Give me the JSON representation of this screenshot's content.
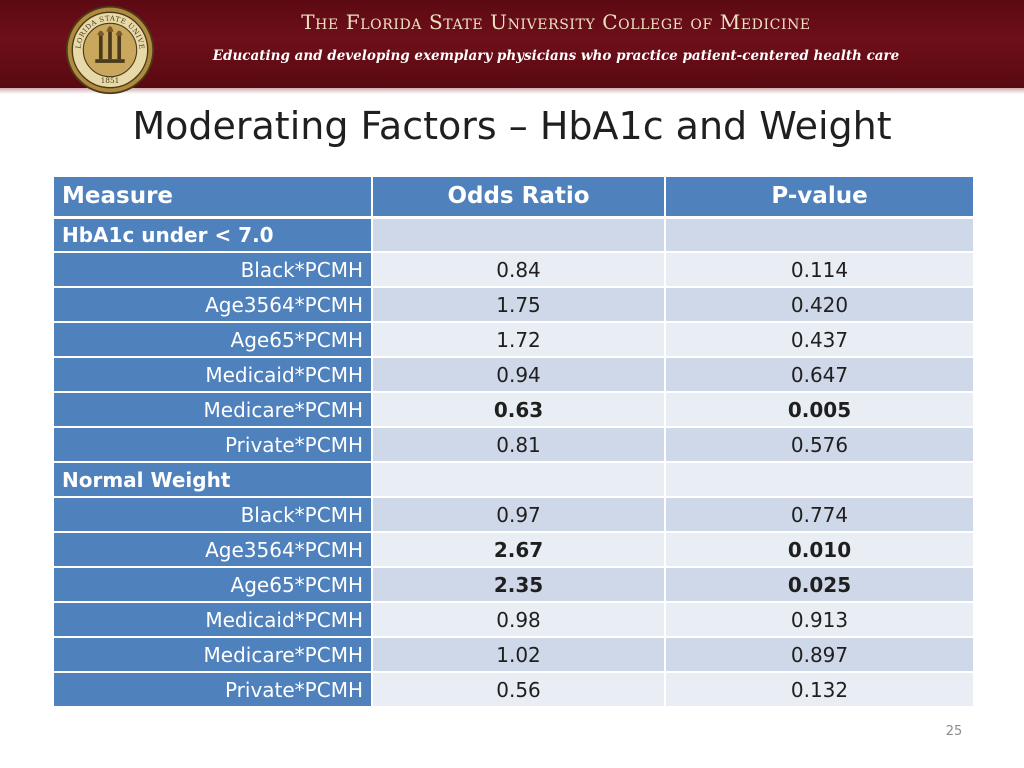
{
  "header": {
    "institution": "The Florida State University College of Medicine",
    "tagline": "Educating and developing exemplary physicians who practice patient-centered health care",
    "seal": {
      "text_top": "THE FLORIDA STATE UNIVERSITY",
      "year": "1851",
      "colors": {
        "gold": "#b08a3e",
        "dark": "#4a3a1a",
        "light": "#e8d9a8"
      }
    }
  },
  "title": "Moderating Factors – HbA1c and Weight",
  "table": {
    "columns": [
      "Measure",
      "Odds Ratio",
      "P-value"
    ],
    "rows": [
      {
        "type": "group",
        "label": "HbA1c under < 7.0",
        "odds": "",
        "p": "",
        "bold": false
      },
      {
        "type": "row",
        "label": "Black*PCMH",
        "odds": "0.84",
        "p": "0.114",
        "bold": false
      },
      {
        "type": "row",
        "label": "Age3564*PCMH",
        "odds": "1.75",
        "p": "0.420",
        "bold": false
      },
      {
        "type": "row",
        "label": "Age65*PCMH",
        "odds": "1.72",
        "p": "0.437",
        "bold": false
      },
      {
        "type": "row",
        "label": "Medicaid*PCMH",
        "odds": "0.94",
        "p": "0.647",
        "bold": false
      },
      {
        "type": "row",
        "label": "Medicare*PCMH",
        "odds": "0.63",
        "p": "0.005",
        "bold": true
      },
      {
        "type": "row",
        "label": "Private*PCMH",
        "odds": "0.81",
        "p": "0.576",
        "bold": false
      },
      {
        "type": "group",
        "label": "Normal Weight",
        "odds": "",
        "p": "",
        "bold": false
      },
      {
        "type": "row",
        "label": "Black*PCMH",
        "odds": "0.97",
        "p": "0.774",
        "bold": false
      },
      {
        "type": "row",
        "label": "Age3564*PCMH",
        "odds": "2.67",
        "p": "0.010",
        "bold": true
      },
      {
        "type": "row",
        "label": "Age65*PCMH",
        "odds": "2.35",
        "p": "0.025",
        "bold": true
      },
      {
        "type": "row",
        "label": "Medicaid*PCMH",
        "odds": "0.98",
        "p": "0.913",
        "bold": false
      },
      {
        "type": "row",
        "label": "Medicare*PCMH",
        "odds": "1.02",
        "p": "0.897",
        "bold": false
      },
      {
        "type": "row",
        "label": "Private*PCMH",
        "odds": "0.56",
        "p": "0.132",
        "bold": false
      }
    ],
    "colors": {
      "header": "#4f81bd",
      "band_dark": "#cfd8e9",
      "band_light": "#e9edf4"
    }
  },
  "page_number": "25",
  "colors": {
    "banner": "#6e0f1a",
    "banner_text": "#efe2c4"
  }
}
